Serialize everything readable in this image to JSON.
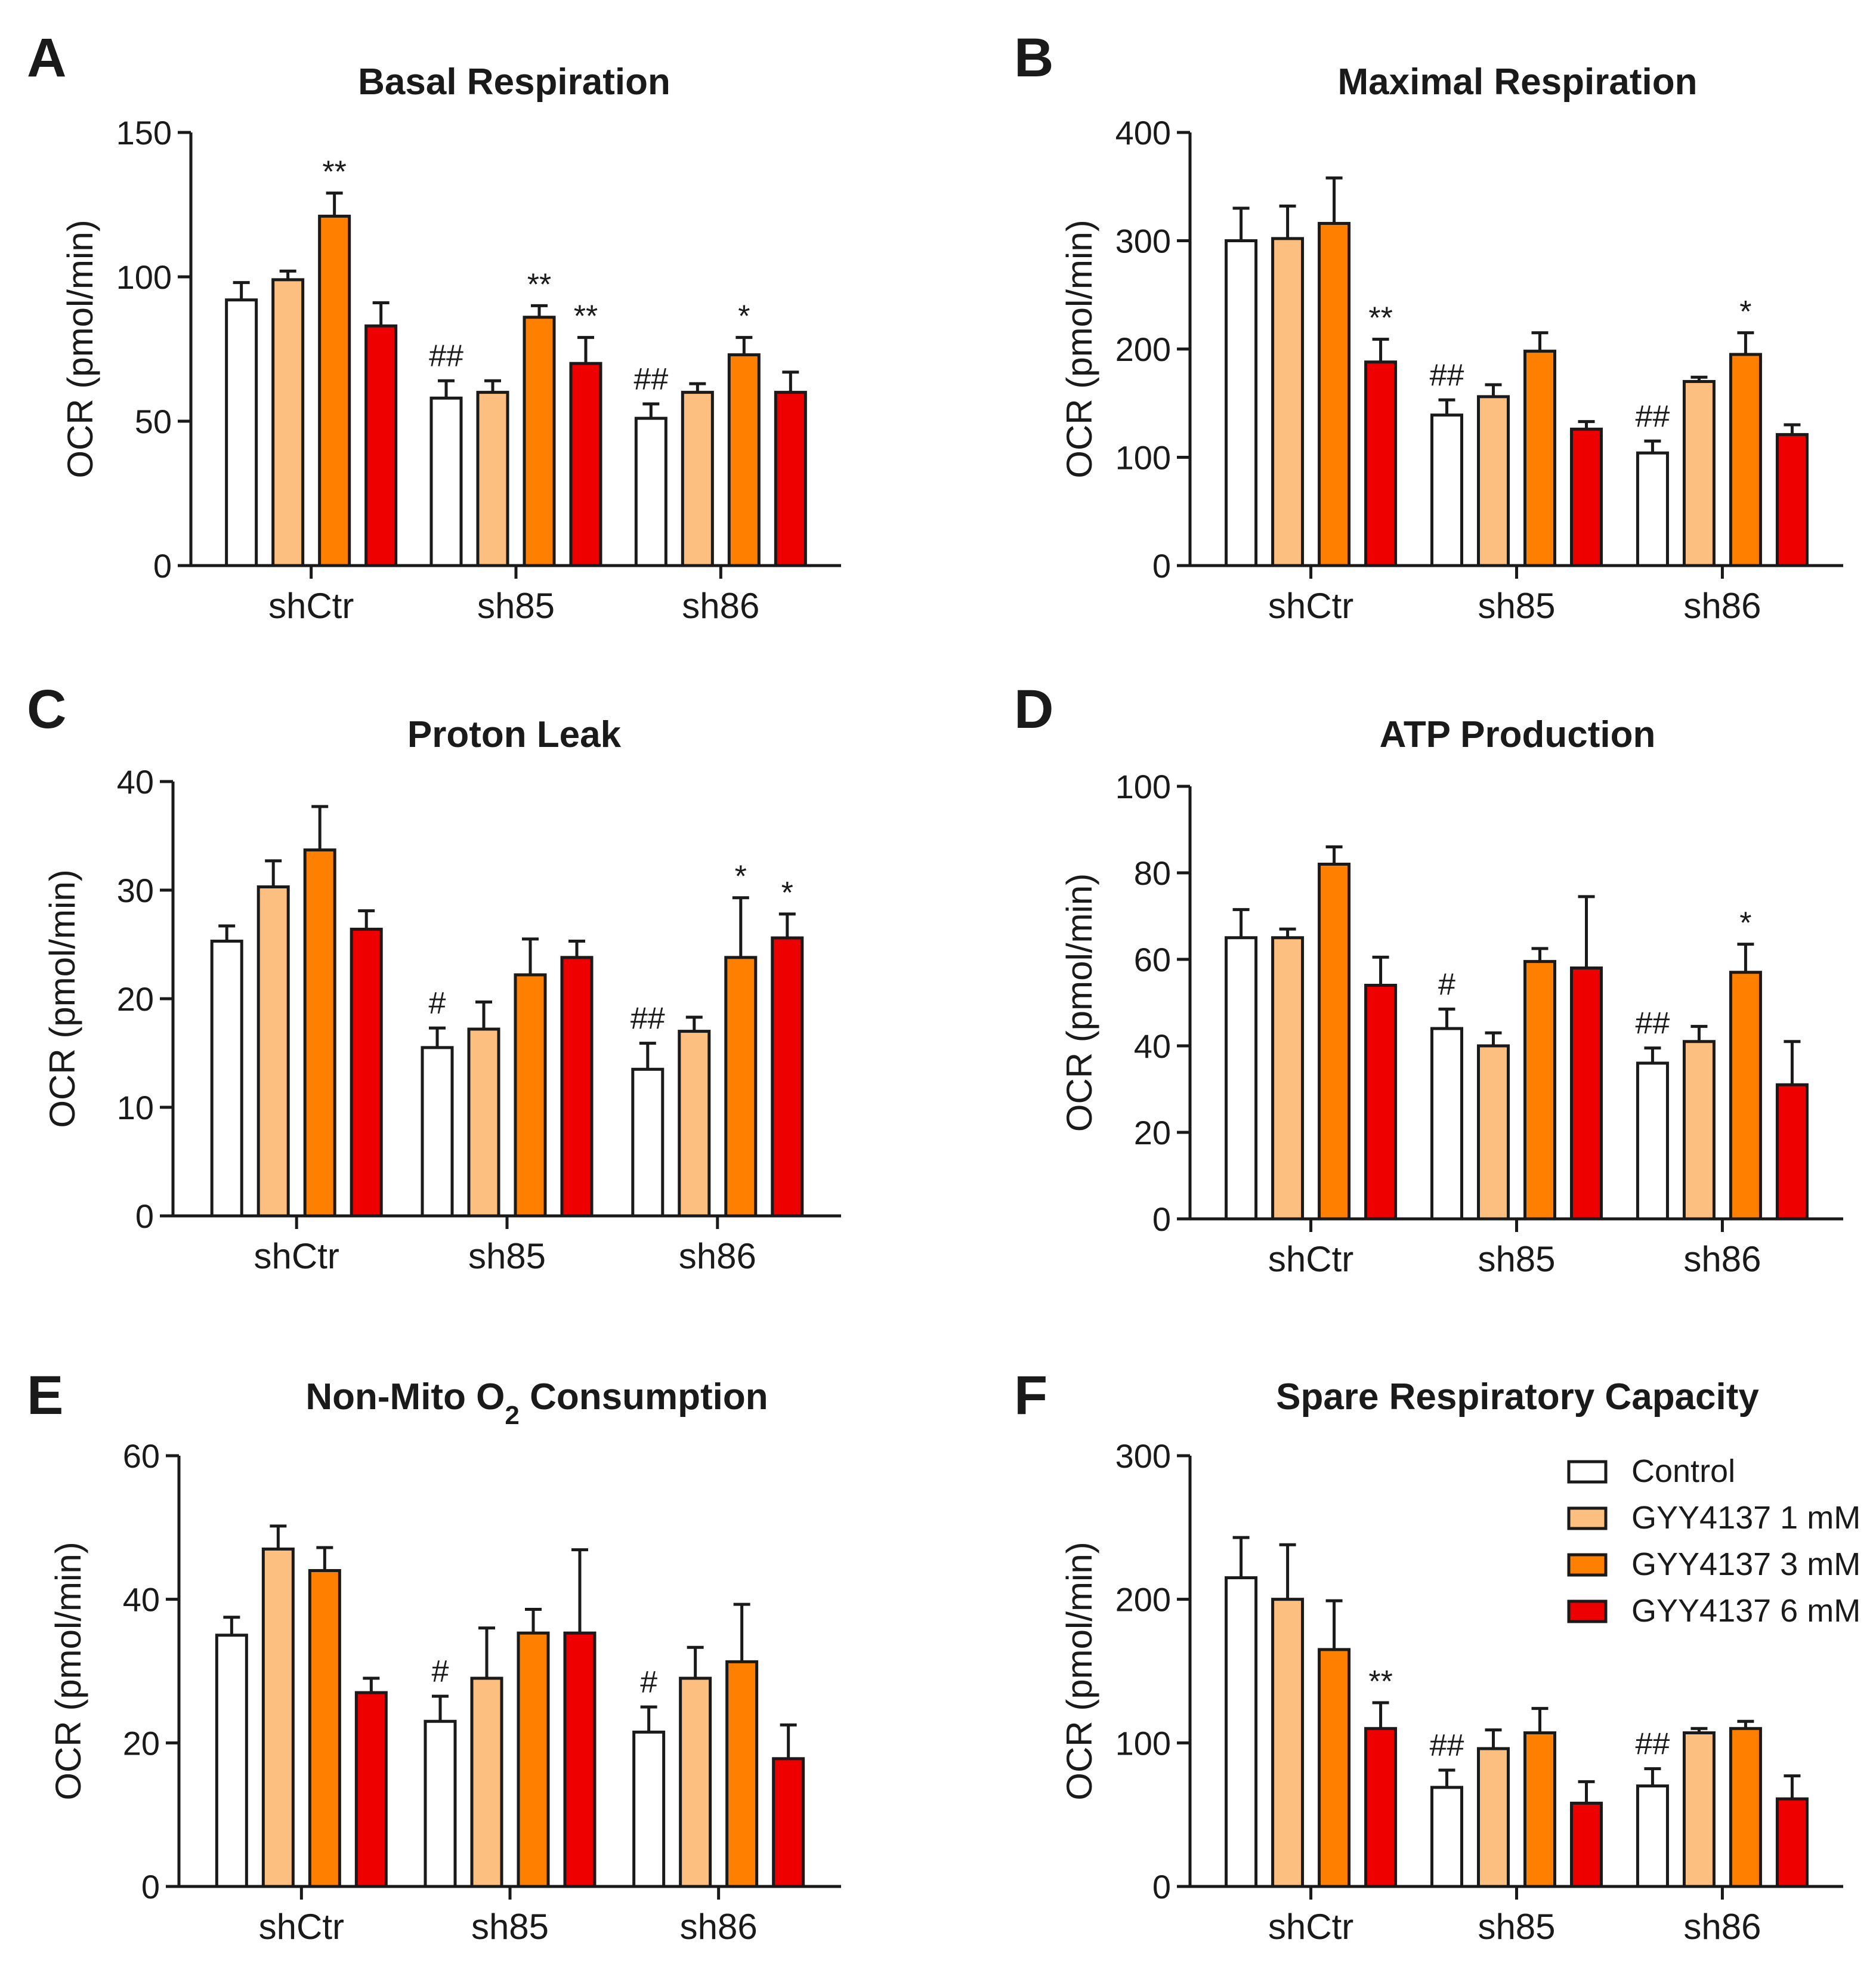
{
  "figure": {
    "groups": [
      "shCtr",
      "sh85",
      "sh86"
    ],
    "legend": {
      "entries": [
        {
          "label": "Control",
          "color": "#ffffff"
        },
        {
          "label": "GYY4137 1 mM",
          "color": "#fdbf7f"
        },
        {
          "label": "GYY4137 3 mM",
          "color": "#ff7f00"
        },
        {
          "label": "GYY4137 6 mM",
          "color": "#ee0000"
        }
      ],
      "placement": "top-right of panel F"
    }
  },
  "chart_data": [
    {
      "type": "bar",
      "letter": "A",
      "title": "Basal Respiration",
      "ylabel": "OCR (pmol/min)",
      "ylim": [
        0,
        150
      ],
      "yticks": [
        0,
        50,
        100,
        150
      ],
      "categories": [
        "shCtr",
        "sh85",
        "sh86"
      ],
      "series": [
        {
          "name": "Control",
          "values": [
            92,
            58,
            51
          ],
          "errors": [
            6,
            6,
            5
          ],
          "annotations": [
            "",
            "##",
            "##"
          ]
        },
        {
          "name": "GYY4137 1 mM",
          "values": [
            99,
            60,
            60
          ],
          "errors": [
            3,
            4,
            3
          ],
          "annotations": [
            "",
            "",
            ""
          ]
        },
        {
          "name": "GYY4137 3 mM",
          "values": [
            121,
            86,
            73
          ],
          "errors": [
            8,
            4,
            6
          ],
          "annotations": [
            "**",
            "**",
            "*"
          ]
        },
        {
          "name": "GYY4137 6 mM",
          "values": [
            83,
            70,
            60
          ],
          "errors": [
            8,
            9,
            7
          ],
          "annotations": [
            "",
            "**",
            ""
          ]
        }
      ]
    },
    {
      "type": "bar",
      "letter": "B",
      "title": "Maximal Respiration",
      "ylabel": "OCR (pmol/min)",
      "ylim": [
        0,
        400
      ],
      "yticks": [
        0,
        100,
        200,
        300,
        400
      ],
      "categories": [
        "shCtr",
        "sh85",
        "sh86"
      ],
      "series": [
        {
          "name": "Control",
          "values": [
            300,
            139,
            104
          ],
          "errors": [
            30,
            14,
            11
          ],
          "annotations": [
            "",
            "##",
            "##"
          ]
        },
        {
          "name": "GYY4137 1 mM",
          "values": [
            302,
            156,
            170
          ],
          "errors": [
            30,
            11,
            4
          ],
          "annotations": [
            "",
            "",
            ""
          ]
        },
        {
          "name": "GYY4137 3 mM",
          "values": [
            316,
            198,
            195
          ],
          "errors": [
            42,
            17,
            20
          ],
          "annotations": [
            "",
            "",
            "*"
          ]
        },
        {
          "name": "GYY4137 6 mM",
          "values": [
            188,
            126,
            121
          ],
          "errors": [
            21,
            7,
            9
          ],
          "annotations": [
            "**",
            "",
            ""
          ]
        }
      ]
    },
    {
      "type": "bar",
      "letter": "C",
      "title": "Proton Leak",
      "ylabel": "OCR (pmol/min)",
      "ylim": [
        0,
        40
      ],
      "yticks": [
        0,
        10,
        20,
        30,
        40
      ],
      "categories": [
        "shCtr",
        "sh85",
        "sh86"
      ],
      "series": [
        {
          "name": "Control",
          "values": [
            25.3,
            15.5,
            13.5
          ],
          "errors": [
            1.4,
            1.8,
            2.4
          ],
          "annotations": [
            "",
            "#",
            "##"
          ]
        },
        {
          "name": "GYY4137 1 mM",
          "values": [
            30.3,
            17.2,
            17.0
          ],
          "errors": [
            2.4,
            2.5,
            1.3
          ],
          "annotations": [
            "",
            "",
            ""
          ]
        },
        {
          "name": "GYY4137 3 mM",
          "values": [
            33.7,
            22.2,
            23.8
          ],
          "errors": [
            4.0,
            3.3,
            5.5
          ],
          "annotations": [
            "",
            "",
            "*"
          ]
        },
        {
          "name": "GYY4137 6 mM",
          "values": [
            26.4,
            23.8,
            25.6
          ],
          "errors": [
            1.7,
            1.5,
            2.2
          ],
          "annotations": [
            "",
            "",
            "*"
          ]
        }
      ]
    },
    {
      "type": "bar",
      "letter": "D",
      "title": "ATP Production",
      "ylabel": "OCR (pmol/min)",
      "ylim": [
        0,
        100
      ],
      "yticks": [
        0,
        20,
        40,
        60,
        80,
        100
      ],
      "categories": [
        "shCtr",
        "sh85",
        "sh86"
      ],
      "series": [
        {
          "name": "Control",
          "values": [
            65,
            44,
            36
          ],
          "errors": [
            6.5,
            4.5,
            3.5
          ],
          "annotations": [
            "",
            "#",
            "##"
          ]
        },
        {
          "name": "GYY4137 1 mM",
          "values": [
            65,
            40,
            41
          ],
          "errors": [
            2,
            3,
            3.5
          ],
          "annotations": [
            "",
            "",
            ""
          ]
        },
        {
          "name": "GYY4137 3 mM",
          "values": [
            82,
            59.5,
            57
          ],
          "errors": [
            4,
            3,
            6.5
          ],
          "annotations": [
            "",
            "",
            "*"
          ]
        },
        {
          "name": "GYY4137 6 mM",
          "values": [
            54,
            58,
            31
          ],
          "errors": [
            6.5,
            16.5,
            10
          ],
          "annotations": [
            "",
            "",
            ""
          ]
        }
      ]
    },
    {
      "type": "bar",
      "letter": "E",
      "title": "Non-Mito O",
      "title_sub": "2",
      "title_tail": " Consumption",
      "ylabel": "OCR (pmol/min)",
      "ylim": [
        0,
        60
      ],
      "yticks": [
        0,
        20,
        40,
        60
      ],
      "categories": [
        "shCtr",
        "sh85",
        "sh86"
      ],
      "series": [
        {
          "name": "Control",
          "values": [
            35,
            23,
            21.5
          ],
          "errors": [
            2.5,
            3.5,
            3.5
          ],
          "annotations": [
            "",
            "#",
            "#"
          ]
        },
        {
          "name": "GYY4137 1 mM",
          "values": [
            47,
            29,
            29
          ],
          "errors": [
            3.2,
            7,
            4.3
          ],
          "annotations": [
            "",
            "",
            ""
          ]
        },
        {
          "name": "GYY4137 3 mM",
          "values": [
            44,
            35.3,
            31.3
          ],
          "errors": [
            3.2,
            3.3,
            8
          ],
          "annotations": [
            "",
            "",
            ""
          ]
        },
        {
          "name": "GYY4137 6 mM",
          "values": [
            27,
            35.3,
            17.8
          ],
          "errors": [
            2,
            11.6,
            4.7
          ],
          "annotations": [
            "",
            "",
            ""
          ]
        }
      ]
    },
    {
      "type": "bar",
      "letter": "F",
      "title": "Spare Respiratory Capacity",
      "ylabel": "OCR (pmol/min)",
      "ylim": [
        0,
        300
      ],
      "yticks": [
        0,
        100,
        200,
        300
      ],
      "categories": [
        "shCtr",
        "sh85",
        "sh86"
      ],
      "legend": true,
      "series": [
        {
          "name": "Control",
          "values": [
            215,
            69,
            70
          ],
          "errors": [
            28,
            12,
            12
          ],
          "annotations": [
            "",
            "##",
            "##"
          ]
        },
        {
          "name": "GYY4137 1 mM",
          "values": [
            200,
            96,
            107
          ],
          "errors": [
            38,
            13,
            3
          ],
          "annotations": [
            "",
            "",
            ""
          ]
        },
        {
          "name": "GYY4137 3 mM",
          "values": [
            165,
            107,
            110
          ],
          "errors": [
            34,
            17,
            5
          ],
          "annotations": [
            "",
            "",
            ""
          ]
        },
        {
          "name": "GYY4137 6 mM",
          "values": [
            110,
            58,
            61
          ],
          "errors": [
            18,
            15,
            16
          ],
          "annotations": [
            "**",
            "",
            ""
          ]
        }
      ]
    }
  ]
}
